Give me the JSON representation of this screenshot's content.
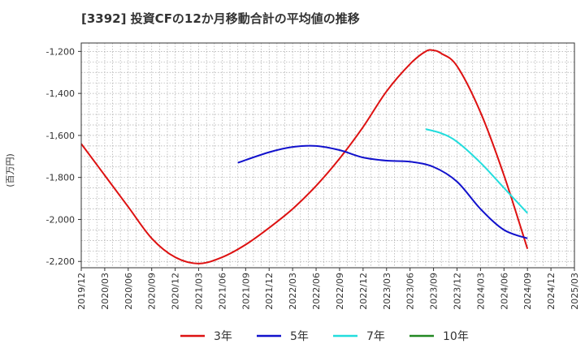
{
  "title": "[3392]  投資CFの12か月移動合計の平均値の推移",
  "ylabel": "(百万円)",
  "chart_data": {
    "type": "line",
    "title": "[3392]  投資CFの12か月移動合計の平均値の推移",
    "ylabel": "(百万円)",
    "xlabel": "",
    "ylim": [
      -2230,
      -1160
    ],
    "yticks": [
      -1200,
      -1400,
      -1600,
      -1800,
      -2000,
      -2200
    ],
    "xlim": [
      "2019/12",
      "2025/03"
    ],
    "xticks": [
      "2019/12",
      "2020/03",
      "2020/06",
      "2020/09",
      "2020/12",
      "2021/03",
      "2021/06",
      "2021/09",
      "2021/12",
      "2022/03",
      "2022/06",
      "2022/09",
      "2022/12",
      "2023/03",
      "2023/06",
      "2023/09",
      "2023/12",
      "2024/03",
      "2024/06",
      "2024/09",
      "2024/12",
      "2025/03"
    ],
    "grid": true,
    "legend": "bottom",
    "series": [
      {
        "name": "3年",
        "color": "#dd1111",
        "points": [
          [
            "2019/12",
            -1640
          ],
          [
            "2020/03",
            -1790
          ],
          [
            "2020/06",
            -1940
          ],
          [
            "2020/09",
            -2090
          ],
          [
            "2020/12",
            -2180
          ],
          [
            "2021/03",
            -2210
          ],
          [
            "2021/06",
            -2180
          ],
          [
            "2021/09",
            -2120
          ],
          [
            "2021/12",
            -2040
          ],
          [
            "2022/03",
            -1950
          ],
          [
            "2022/06",
            -1840
          ],
          [
            "2022/09",
            -1710
          ],
          [
            "2022/12",
            -1560
          ],
          [
            "2023/03",
            -1390
          ],
          [
            "2023/06",
            -1260
          ],
          [
            "2023/08",
            -1200
          ],
          [
            "2023/09",
            -1195
          ],
          [
            "2023/10",
            -1210
          ],
          [
            "2023/12",
            -1270
          ],
          [
            "2024/03",
            -1490
          ],
          [
            "2024/06",
            -1790
          ],
          [
            "2024/09",
            -2140
          ]
        ]
      },
      {
        "name": "5年",
        "color": "#1111cc",
        "points": [
          [
            "2021/08",
            -1730
          ],
          [
            "2021/12",
            -1680
          ],
          [
            "2022/03",
            -1655
          ],
          [
            "2022/06",
            -1650
          ],
          [
            "2022/09",
            -1670
          ],
          [
            "2022/12",
            -1705
          ],
          [
            "2023/03",
            -1720
          ],
          [
            "2023/06",
            -1725
          ],
          [
            "2023/09",
            -1750
          ],
          [
            "2023/12",
            -1820
          ],
          [
            "2024/03",
            -1950
          ],
          [
            "2024/06",
            -2050
          ],
          [
            "2024/09",
            -2090
          ]
        ]
      },
      {
        "name": "7年",
        "color": "#22dddd",
        "points": [
          [
            "2023/08",
            -1570
          ],
          [
            "2023/10",
            -1590
          ],
          [
            "2023/12",
            -1630
          ],
          [
            "2024/03",
            -1730
          ],
          [
            "2024/06",
            -1850
          ],
          [
            "2024/09",
            -1970
          ]
        ]
      },
      {
        "name": "10年",
        "color": "#228822",
        "points": []
      }
    ]
  }
}
